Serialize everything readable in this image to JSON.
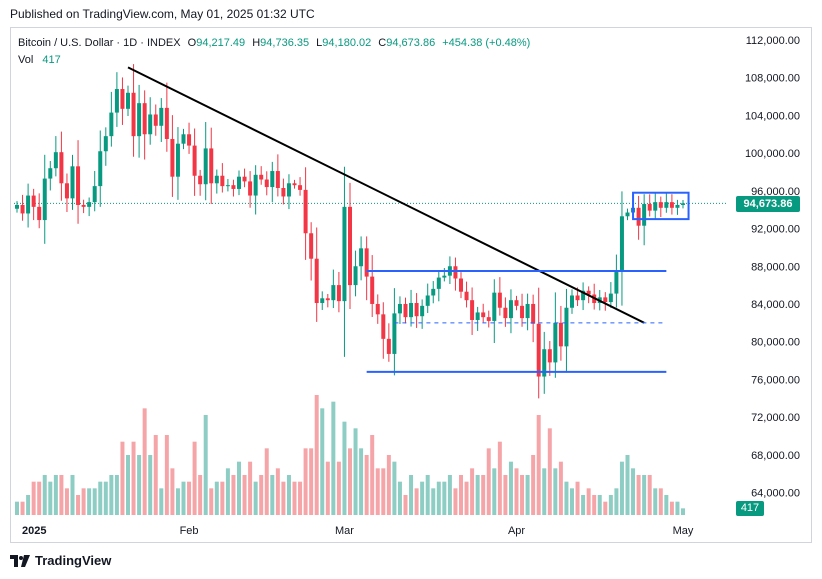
{
  "published": "Published on TradingView.com, May 01, 2025 01:32 UTC",
  "legend": {
    "symbol": "Bitcoin / U.S. Dollar · 1D · INDEX",
    "open_label": "O",
    "open": "94,217.49",
    "high_label": "H",
    "high": "94,736.35",
    "low_label": "L",
    "low": "94,180.02",
    "close_label": "C",
    "close": "94,673.86",
    "change": "+454.38 (+0.48%)",
    "vol_label": "Vol",
    "vol": "417"
  },
  "colors": {
    "up": "#089981",
    "down": "#f23645",
    "up_vol": "#8dcdc4",
    "down_vol": "#f5a5a8",
    "line": "#2962ff"
  },
  "footer": {
    "brand": "TradingView"
  },
  "chart_data": {
    "type": "candlestick",
    "title": "Bitcoin / U.S. Dollar · 1D · INDEX",
    "ylim": [
      61000,
      113500
    ],
    "y_ticks": [
      "112,000.00",
      "108,000.00",
      "104,000.00",
      "100,000.00",
      "96,000.00",
      "92,000.00",
      "88,000.00",
      "84,000.00",
      "80,000.00",
      "76,000.00",
      "72,000.00",
      "68,000.00",
      "64,000.00"
    ],
    "x_ticks": [
      {
        "label": "2025",
        "day": 0
      },
      {
        "label": "Feb",
        "day": 31
      },
      {
        "label": "Mar",
        "day": 59
      },
      {
        "label": "Apr",
        "day": 90
      },
      {
        "label": "May",
        "day": 120
      }
    ],
    "last_price": "94,673.86",
    "last_volume": "417",
    "closes": [
      94500,
      93600,
      95500,
      94300,
      92900,
      97300,
      98400,
      100100,
      96800,
      95200,
      98600,
      94500,
      94300,
      94800,
      96500,
      100200,
      101800,
      104300,
      106800,
      104700,
      106400,
      101800,
      105300,
      102000,
      104100,
      102900,
      104800,
      101500,
      97500,
      101000,
      102000,
      100800,
      97600,
      96700,
      100500,
      96800,
      97600,
      96500,
      96600,
      96200,
      97500,
      97000,
      95500,
      97700,
      97200,
      96400,
      98100,
      96300,
      95400,
      96800,
      96600,
      96100,
      91500,
      88800,
      84100,
      84600,
      84400,
      86000,
      84300,
      94300,
      86000,
      88000,
      89900,
      86900,
      84000,
      82900,
      80300,
      78700,
      83000,
      84000,
      82600,
      84100,
      82700,
      83800,
      84900,
      85600,
      86800,
      87000,
      88000,
      86700,
      85300,
      84400,
      82300,
      83100,
      82600,
      82200,
      85200,
      83600,
      82500,
      84400,
      83800,
      82500,
      84000,
      81900,
      76300,
      79200,
      77800,
      82000,
      79500,
      83600,
      84900,
      84400,
      85400,
      85000,
      84100,
      84700,
      84200,
      85100,
      87500,
      93300,
      93700,
      94200,
      92300,
      94600,
      93900,
      94800,
      94200,
      94800,
      94200,
      94500,
      94674
    ],
    "volumes": [
      2,
      2,
      3,
      5,
      5,
      6,
      5,
      6,
      6,
      4,
      6,
      3,
      4,
      4,
      4,
      5,
      5,
      6,
      6,
      11,
      9,
      11,
      9,
      16,
      9,
      12,
      4,
      12,
      7,
      4,
      5,
      5,
      11,
      6,
      15,
      4,
      5,
      5,
      7,
      6,
      8,
      6,
      8,
      5,
      6,
      10,
      6,
      7,
      5,
      6,
      5,
      5,
      10,
      10,
      18,
      16,
      8,
      17,
      8,
      14,
      10,
      13,
      10,
      9,
      12,
      7,
      7,
      9,
      8,
      5,
      3,
      6,
      4,
      5,
      6,
      4,
      5,
      5,
      6,
      4,
      6,
      5,
      7,
      6,
      6,
      10,
      7,
      11,
      6,
      8,
      7,
      6,
      6,
      9,
      15,
      7,
      13,
      7,
      8,
      5,
      4,
      5,
      3,
      4,
      3,
      3,
      2,
      3,
      4,
      8,
      9,
      7,
      6,
      6,
      6,
      4,
      4,
      3,
      2,
      2,
      1
    ],
    "volume_max_display_note": "volumes in relative units (max bar ≈ 18)",
    "annotations": [
      {
        "type": "trendline",
        "from": {
          "day": 20,
          "price": 109100
        },
        "to": {
          "day": 113,
          "price": 82000
        }
      },
      {
        "type": "hline",
        "day_from": 63,
        "day_to": 117,
        "price": 87500
      },
      {
        "type": "hline",
        "day_from": 63,
        "day_to": 117,
        "price": 76800
      },
      {
        "type": "dashed",
        "day_from": 68,
        "day_to": 117,
        "price": 82000
      },
      {
        "type": "box",
        "day_from": 111,
        "day_to": 121,
        "price_top": 95800,
        "price_bottom": 93000
      }
    ]
  }
}
